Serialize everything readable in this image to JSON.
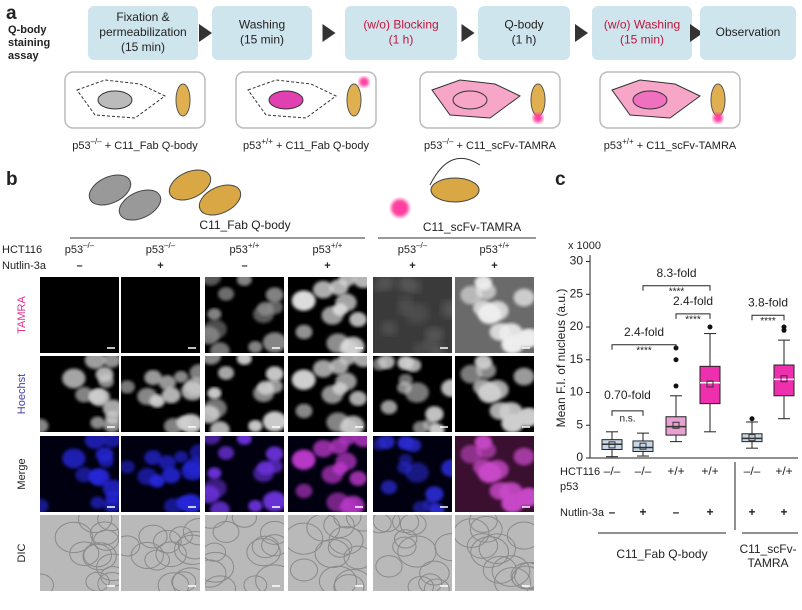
{
  "panel_a": {
    "label": "a",
    "title": [
      "Q-body",
      "staining",
      "assay"
    ],
    "steps": [
      {
        "lines": [
          "Fixation &",
          "permeabilization",
          "(15 min)"
        ],
        "color": "#222222"
      },
      {
        "lines": [
          "Washing",
          "(15 min)"
        ],
        "color": "#222222"
      },
      {
        "lines": [
          "(w/o) Blocking",
          "(1 h)"
        ],
        "color": "#c0143c"
      },
      {
        "lines": [
          "Q-body",
          "(1 h)"
        ],
        "color": "#222222"
      },
      {
        "lines": [
          "(w/o) Washing",
          "(15 min)"
        ],
        "color": "#c0143c"
      },
      {
        "lines": [
          "Observation"
        ],
        "color": "#222222"
      }
    ],
    "conditions": [
      {
        "gene": "p53",
        "genotype": "–/–",
        "probe": " + C11_Fab Q-body"
      },
      {
        "gene": "p53",
        "genotype": "+/+",
        "probe": " + C11_Fab Q-body"
      },
      {
        "gene": "p53",
        "genotype": "–/–",
        "probe": " + C11_scFv-TAMRA"
      },
      {
        "gene": "p53",
        "genotype": "+/+",
        "probe": " + C11_scFv-TAMRA"
      }
    ]
  },
  "panel_b": {
    "label": "b",
    "probes": [
      "C11_Fab Q-body",
      "C11_scFv-TAMRA"
    ],
    "cell_line": "HCT116",
    "treatment": "Nutlin-3a",
    "columns": [
      {
        "gene": "p53",
        "genotype": "–/–",
        "nutlin": "–"
      },
      {
        "gene": "p53",
        "genotype": "–/–",
        "nutlin": "+"
      },
      {
        "gene": "p53",
        "genotype": "+/+",
        "nutlin": "–"
      },
      {
        "gene": "p53",
        "genotype": "+/+",
        "nutlin": "+"
      },
      {
        "gene": "p53",
        "genotype": "–/–",
        "nutlin": "+"
      },
      {
        "gene": "p53",
        "genotype": "+/+",
        "nutlin": "+"
      }
    ],
    "rows": [
      {
        "name": "TAMRA",
        "color": "#e0308a"
      },
      {
        "name": "Hoechst",
        "color": "#4040a8"
      },
      {
        "name": "Merge",
        "color": "#222222"
      },
      {
        "name": "DIC",
        "color": "#222222"
      }
    ]
  },
  "chart_data": {
    "type": "box",
    "label": "c",
    "ylabel": "Mean F.I. of nucleus (a.u.)",
    "scale_label": "x 1000",
    "ylim": [
      0,
      31
    ],
    "yticks": [
      0,
      5,
      10,
      15,
      20,
      25,
      30
    ],
    "row_labels": [
      "HCT116",
      "p53",
      "Nutlin-3a"
    ],
    "categories": [
      "–/–",
      "–/–",
      "+/+",
      "+/+",
      "–/–",
      "+/+"
    ],
    "nutlin": [
      "–",
      "+",
      "–",
      "+",
      "+",
      "+"
    ],
    "groups": [
      "C11_Fab Q-body",
      [
        "C11_scFv-",
        "TAMRA"
      ]
    ],
    "colors": [
      "#c8d8e8",
      "#c8d8e8",
      "#e8a0d0",
      "#ee2fae",
      "#c8d8e8",
      "#ee2fae"
    ],
    "boxes": [
      {
        "whislo": 0.2,
        "q1": 1.3,
        "med": 2.1,
        "q3": 2.8,
        "whishi": 4.0,
        "mean": 2.0,
        "fliers": []
      },
      {
        "whislo": 0.3,
        "q1": 1.0,
        "med": 1.6,
        "q3": 2.6,
        "whishi": 3.8,
        "mean": 1.8,
        "fliers": []
      },
      {
        "whislo": 2.5,
        "q1": 3.5,
        "med": 4.8,
        "q3": 6.3,
        "whishi": 9.5,
        "mean": 5.0,
        "fliers": [
          11,
          15,
          16.8
        ]
      },
      {
        "whislo": 4.0,
        "q1": 8.3,
        "med": 11.5,
        "q3": 14.0,
        "whishi": 19.0,
        "mean": 11.3,
        "fliers": [
          20
        ]
      },
      {
        "whislo": 1.5,
        "q1": 2.5,
        "med": 3.0,
        "q3": 3.7,
        "whishi": 5.5,
        "mean": 3.1,
        "fliers": [
          6
        ]
      },
      {
        "whislo": 6.0,
        "q1": 9.5,
        "med": 12.0,
        "q3": 14.2,
        "whishi": 18.0,
        "mean": 12.1,
        "fliers": [
          19.5,
          20
        ]
      }
    ],
    "annotations": [
      {
        "text": "0.70-fold",
        "sig": "n.s."
      },
      {
        "text": "2.4-fold",
        "sig": "****"
      },
      {
        "text": "8.3-fold",
        "sig": "****"
      },
      {
        "text": "2.4-fold",
        "sig": "****"
      },
      {
        "text": "3.8-fold",
        "sig": "****"
      }
    ]
  }
}
